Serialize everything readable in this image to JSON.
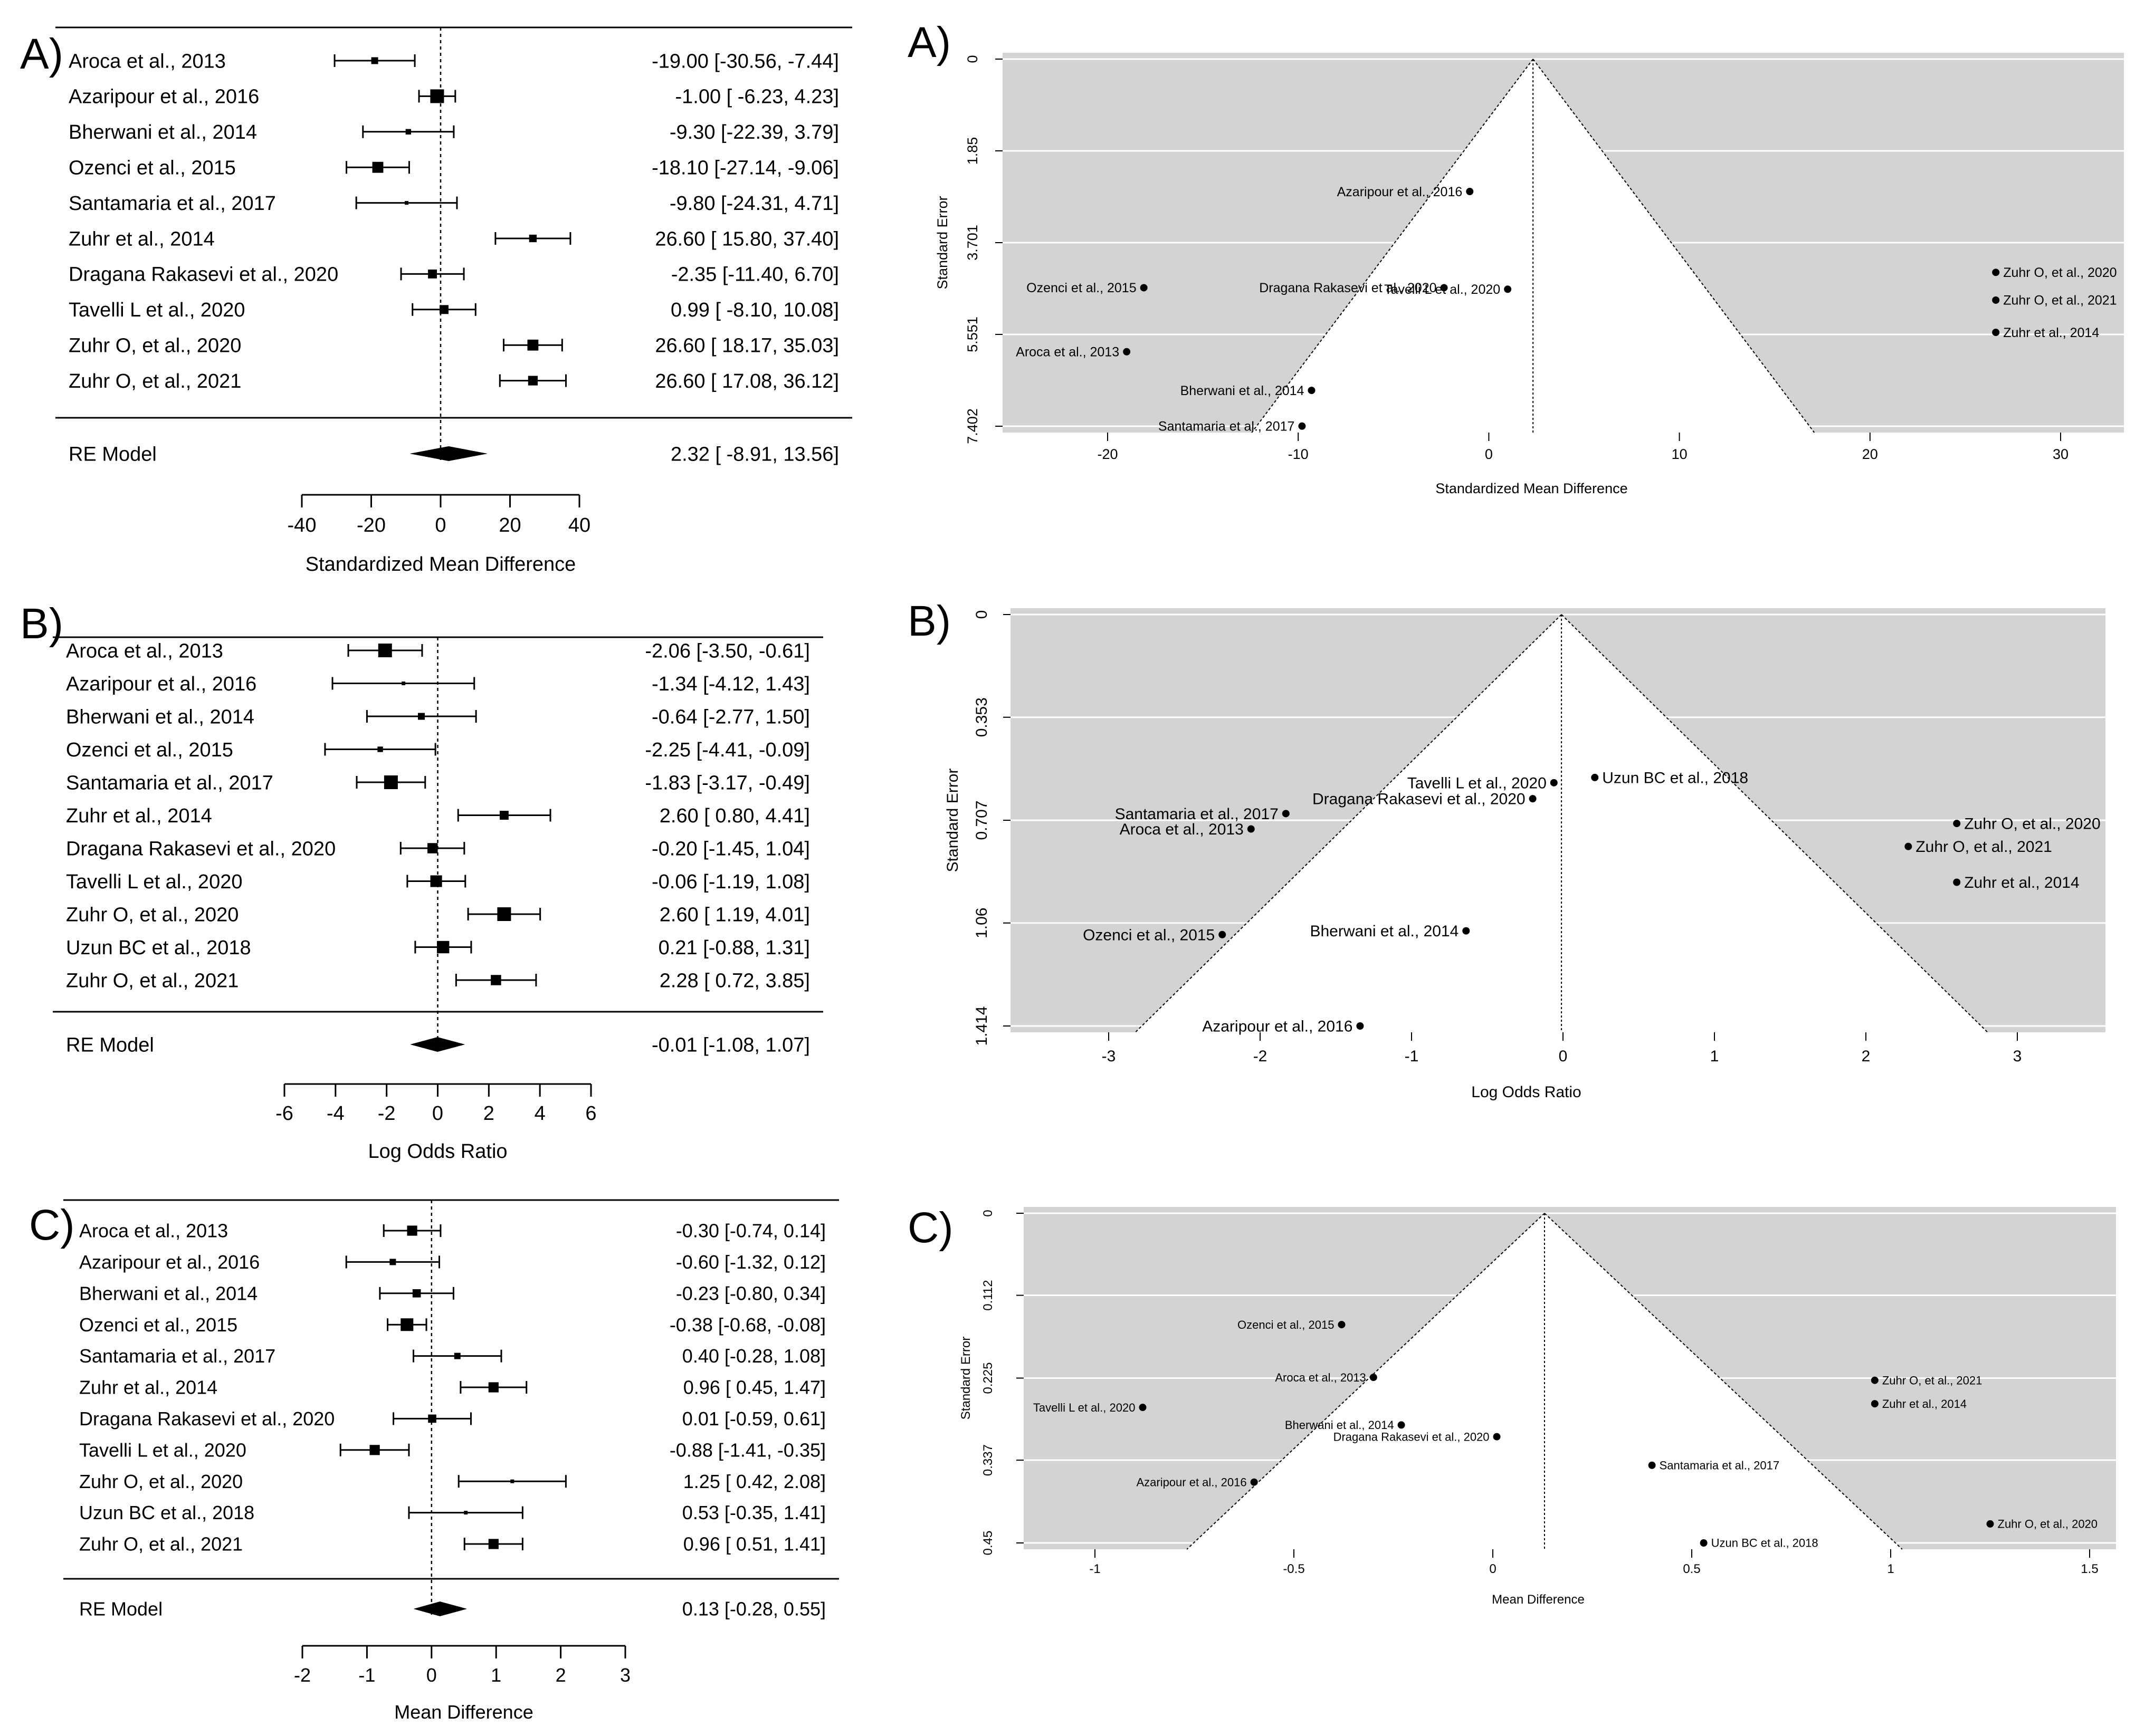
{
  "chart_data": [
    {
      "id": "forest-a",
      "type": "forest",
      "panel_label": "A)",
      "xlabel": "Standardized Mean Difference",
      "xlim": [
        -40,
        40
      ],
      "xticks": [
        -40,
        -20,
        0,
        20,
        40
      ],
      "xtick_labels": [
        "-40",
        "-20",
        "0",
        "20",
        "40"
      ],
      "studies": [
        {
          "label": "Aroca et al., 2013",
          "est": -19.0,
          "lo": -30.56,
          "hi": -7.44,
          "ci_text": "-19.00 [-30.56, -7.44]",
          "weight": 0.5
        },
        {
          "label": "Azaripour et al., 2016",
          "est": -1.0,
          "lo": -6.23,
          "hi": 4.23,
          "ci_text": "-1.00 [ -6.23,  4.23]",
          "weight": 1.0
        },
        {
          "label": "Bherwani et al., 2014",
          "est": -9.3,
          "lo": -22.39,
          "hi": 3.79,
          "ci_text": "-9.30 [-22.39,  3.79]",
          "weight": 0.4
        },
        {
          "label": "Ozenci et al., 2015",
          "est": -18.1,
          "lo": -27.14,
          "hi": -9.06,
          "ci_text": "-18.10 [-27.14, -9.06]",
          "weight": 0.8
        },
        {
          "label": "Santamaria et al., 2017",
          "est": -9.8,
          "lo": -24.31,
          "hi": 4.71,
          "ci_text": "-9.80 [-24.31,  4.71]",
          "weight": 0.2
        },
        {
          "label": "Zuhr et al., 2014",
          "est": 26.6,
          "lo": 15.8,
          "hi": 37.4,
          "ci_text": "26.60 [ 15.80, 37.40]",
          "weight": 0.55
        },
        {
          "label": "Dragana Rakasevi et al., 2020",
          "est": -2.35,
          "lo": -11.4,
          "hi": 6.7,
          "ci_text": "-2.35 [-11.40,  6.70]",
          "weight": 0.65
        },
        {
          "label": "Tavelli L et al., 2020",
          "est": 0.99,
          "lo": -8.1,
          "hi": 10.08,
          "ci_text": "0.99 [ -8.10, 10.08]",
          "weight": 0.65
        },
        {
          "label": "Zuhr O, et al., 2020",
          "est": 26.6,
          "lo": 18.17,
          "hi": 35.03,
          "ci_text": "26.60 [ 18.17, 35.03]",
          "weight": 0.8
        },
        {
          "label": "Zuhr O, et al., 2021",
          "est": 26.6,
          "lo": 17.08,
          "hi": 36.12,
          "ci_text": "26.60 [ 17.08, 36.12]",
          "weight": 0.7
        }
      ],
      "summary": {
        "label": "RE Model",
        "est": 2.32,
        "lo": -8.91,
        "hi": 13.56,
        "ci_text": "2.32 [ -8.91, 13.56]"
      }
    },
    {
      "id": "forest-b",
      "type": "forest",
      "panel_label": "B)",
      "xlabel": "Log Odds Ratio",
      "xlim": [
        -6,
        6
      ],
      "xticks": [
        -6,
        -4,
        -2,
        0,
        2,
        4,
        6
      ],
      "xtick_labels": [
        "-6",
        "-4",
        "-2",
        "0",
        "2",
        "4",
        "6"
      ],
      "studies": [
        {
          "label": "Aroca et al., 2013",
          "est": -2.06,
          "lo": -3.5,
          "hi": -0.61,
          "ci_text": "-2.06 [-3.50, -0.61]",
          "weight": 1.0
        },
        {
          "label": "Azaripour et al., 2016",
          "est": -1.34,
          "lo": -4.12,
          "hi": 1.43,
          "ci_text": "-1.34 [-4.12,  1.43]",
          "weight": 0.2
        },
        {
          "label": "Bherwani et al., 2014",
          "est": -0.64,
          "lo": -2.77,
          "hi": 1.5,
          "ci_text": "-0.64 [-2.77,  1.50]",
          "weight": 0.5
        },
        {
          "label": "Ozenci et al., 2015",
          "est": -2.25,
          "lo": -4.41,
          "hi": -0.09,
          "ci_text": "-2.25 [-4.41, -0.09]",
          "weight": 0.4
        },
        {
          "label": "Santamaria et al., 2017",
          "est": -1.83,
          "lo": -3.17,
          "hi": -0.49,
          "ci_text": "-1.83 [-3.17, -0.49]",
          "weight": 1.0
        },
        {
          "label": "Zuhr et al., 2014",
          "est": 2.6,
          "lo": 0.8,
          "hi": 4.41,
          "ci_text": "2.60 [ 0.80,  4.41]",
          "weight": 0.65
        },
        {
          "label": "Dragana Rakasevi et al., 2020",
          "est": -0.2,
          "lo": -1.45,
          "hi": 1.04,
          "ci_text": "-0.20 [-1.45,  1.04]",
          "weight": 0.75
        },
        {
          "label": "Tavelli L et al., 2020",
          "est": -0.06,
          "lo": -1.19,
          "hi": 1.08,
          "ci_text": "-0.06 [-1.19,  1.08]",
          "weight": 0.85
        },
        {
          "label": "Zuhr O, et al., 2020",
          "est": 2.6,
          "lo": 1.19,
          "hi": 4.01,
          "ci_text": "2.60 [ 1.19,  4.01]",
          "weight": 1.0
        },
        {
          "label": "Uzun BC et al., 2018",
          "est": 0.21,
          "lo": -0.88,
          "hi": 1.31,
          "ci_text": "0.21 [-0.88,  1.31]",
          "weight": 0.9
        },
        {
          "label": "Zuhr O, et al., 2021",
          "est": 2.28,
          "lo": 0.72,
          "hi": 3.85,
          "ci_text": "2.28 [ 0.72,  3.85]",
          "weight": 0.75
        }
      ],
      "summary": {
        "label": "RE Model",
        "est": -0.01,
        "lo": -1.08,
        "hi": 1.07,
        "ci_text": "-0.01 [-1.08,  1.07]"
      }
    },
    {
      "id": "forest-c",
      "type": "forest",
      "panel_label": "C)",
      "xlabel": "Mean Difference",
      "xlim": [
        -2,
        3
      ],
      "xticks": [
        -2,
        -1,
        0,
        1,
        2,
        3
      ],
      "xtick_labels": [
        "-2",
        "-1",
        "0",
        "1",
        "2",
        "3"
      ],
      "studies": [
        {
          "label": "Aroca et al., 2013",
          "est": -0.3,
          "lo": -0.74,
          "hi": 0.14,
          "ci_text": "-0.30 [-0.74,  0.14]",
          "weight": 0.8
        },
        {
          "label": "Azaripour et al., 2016",
          "est": -0.6,
          "lo": -1.32,
          "hi": 0.12,
          "ci_text": "-0.60 [-1.32,  0.12]",
          "weight": 0.5
        },
        {
          "label": "Bherwani et al., 2014",
          "est": -0.23,
          "lo": -0.8,
          "hi": 0.34,
          "ci_text": "-0.23 [-0.80,  0.34]",
          "weight": 0.65
        },
        {
          "label": "Ozenci et al., 2015",
          "est": -0.38,
          "lo": -0.68,
          "hi": -0.08,
          "ci_text": "-0.38 [-0.68, -0.08]",
          "weight": 1.0
        },
        {
          "label": "Santamaria et al., 2017",
          "est": 0.4,
          "lo": -0.28,
          "hi": 1.08,
          "ci_text": "0.40 [-0.28,  1.08]",
          "weight": 0.5
        },
        {
          "label": "Zuhr et al., 2014",
          "est": 0.96,
          "lo": 0.45,
          "hi": 1.47,
          "ci_text": "0.96 [ 0.45,  1.47]",
          "weight": 0.8
        },
        {
          "label": "Dragana Rakasevi et al., 2020",
          "est": 0.01,
          "lo": -0.59,
          "hi": 0.61,
          "ci_text": "0.01 [-0.59,  0.61]",
          "weight": 0.65
        },
        {
          "label": "Tavelli L et al., 2020",
          "est": -0.88,
          "lo": -1.41,
          "hi": -0.35,
          "ci_text": "-0.88 [-1.41, -0.35]",
          "weight": 0.8
        },
        {
          "label": "Zuhr O, et al., 2020",
          "est": 1.25,
          "lo": 0.42,
          "hi": 2.08,
          "ci_text": "1.25 [ 0.42,  2.08]",
          "weight": 0.25
        },
        {
          "label": "Uzun BC et al., 2018",
          "est": 0.53,
          "lo": -0.35,
          "hi": 1.41,
          "ci_text": "0.53 [-0.35,  1.41]",
          "weight": 0.25
        },
        {
          "label": "Zuhr O, et al., 2021",
          "est": 0.96,
          "lo": 0.51,
          "hi": 1.41,
          "ci_text": "0.96 [ 0.51,  1.41]",
          "weight": 0.8
        }
      ],
      "summary": {
        "label": "RE Model",
        "est": 0.13,
        "lo": -0.28,
        "hi": 0.55,
        "ci_text": "0.13 [-0.28,  0.55]"
      }
    },
    {
      "id": "funnel-a",
      "type": "funnel",
      "panel_label": "A)",
      "xlabel": "Standardized Mean Difference",
      "ylabel": "Standard Error",
      "xlim": [
        -26.5,
        33
      ],
      "ylim": [
        0,
        7.402
      ],
      "xticks": [
        -20,
        -10,
        0,
        10,
        20,
        30
      ],
      "xtick_labels": [
        "-20",
        "-10",
        "0",
        "10",
        "20",
        "30"
      ],
      "yticks": [
        0,
        1.85,
        3.701,
        5.551,
        7.402
      ],
      "ytick_labels": [
        "0",
        "1.85",
        "3.701",
        "5.551",
        "7.402"
      ],
      "center": 2.32,
      "points": [
        {
          "label": "Azaripour et al., 2016",
          "x": -1.0,
          "y": 2.67,
          "label_side": "left"
        },
        {
          "label": "Ozenci et al., 2015",
          "x": -18.1,
          "y": 4.61,
          "label_side": "left"
        },
        {
          "label": "Dragana Rakasevi et al., 2020",
          "x": -2.35,
          "y": 4.61,
          "label_side": "left"
        },
        {
          "label": "Tavelli L et al., 2020",
          "x": 0.99,
          "y": 4.64,
          "label_side": "left"
        },
        {
          "label": "Aroca et al., 2013",
          "x": -19.0,
          "y": 5.9,
          "label_side": "left"
        },
        {
          "label": "Bherwani et al., 2014",
          "x": -9.3,
          "y": 6.68,
          "label_side": "left"
        },
        {
          "label": "Santamaria et al., 2017",
          "x": -9.8,
          "y": 7.4,
          "label_side": "left"
        },
        {
          "label": "Zuhr O, et al., 2020",
          "x": 26.6,
          "y": 4.3,
          "label_side": "right"
        },
        {
          "label": "Zuhr O, et al., 2021",
          "x": 26.6,
          "y": 4.86,
          "label_side": "right"
        },
        {
          "label": "Zuhr et al., 2014",
          "x": 26.6,
          "y": 5.51,
          "label_side": "right"
        }
      ]
    },
    {
      "id": "funnel-b",
      "type": "funnel",
      "panel_label": "B)",
      "xlabel": "Log Odds Ratio",
      "ylabel": "Standard Error",
      "xlim": [
        -3.6,
        3.6
      ],
      "ylim": [
        0,
        1.414
      ],
      "xticks": [
        -3,
        -2,
        -1,
        0,
        1,
        2,
        3
      ],
      "xtick_labels": [
        "-3",
        "-2",
        "-1",
        "0",
        "1",
        "2",
        "3"
      ],
      "yticks": [
        0,
        0.353,
        0.707,
        1.06,
        1.414
      ],
      "ytick_labels": [
        "0",
        "0.353",
        "0.707",
        "1.06",
        "1.414"
      ],
      "center": -0.01,
      "points": [
        {
          "label": "Uzun BC et al., 2018",
          "x": 0.21,
          "y": 0.56,
          "label_side": "right"
        },
        {
          "label": "Tavelli L et al., 2020",
          "x": -0.06,
          "y": 0.578,
          "label_side": "left"
        },
        {
          "label": "Dragana Rakasevi et al., 2020",
          "x": -0.2,
          "y": 0.633,
          "label_side": "left"
        },
        {
          "label": "Santamaria et al., 2017",
          "x": -1.83,
          "y": 0.684,
          "label_side": "left"
        },
        {
          "label": "Aroca et al., 2013",
          "x": -2.06,
          "y": 0.737,
          "label_side": "left"
        },
        {
          "label": "Zuhr O, et al., 2020",
          "x": 2.6,
          "y": 0.718,
          "label_side": "right"
        },
        {
          "label": "Zuhr O, et al., 2021",
          "x": 2.28,
          "y": 0.797,
          "label_side": "right"
        },
        {
          "label": "Zuhr et al., 2014",
          "x": 2.6,
          "y": 0.92,
          "label_side": "right"
        },
        {
          "label": "Ozenci et al., 2015",
          "x": -2.25,
          "y": 1.1,
          "label_side": "left"
        },
        {
          "label": "Bherwani et al., 2014",
          "x": -0.64,
          "y": 1.087,
          "label_side": "left"
        },
        {
          "label": "Azaripour et al., 2016",
          "x": -1.34,
          "y": 1.414,
          "label_side": "left"
        }
      ]
    },
    {
      "id": "funnel-c",
      "type": "funnel",
      "panel_label": "C)",
      "xlabel": "Mean Difference",
      "ylabel": "Standard Error",
      "xlim": [
        -1.18,
        1.55
      ],
      "ylim": [
        0,
        0.45
      ],
      "xticks": [
        -1,
        -0.5,
        0,
        0.5,
        1,
        1.5
      ],
      "xtick_labels": [
        "-1",
        "-0.5",
        "0",
        "0.5",
        "1",
        "1.5"
      ],
      "yticks": [
        0,
        0.112,
        0.225,
        0.337,
        0.45
      ],
      "ytick_labels": [
        "0",
        "0.112",
        "0.225",
        "0.337",
        "0.45"
      ],
      "center": 0.13,
      "points": [
        {
          "label": "Ozenci et al., 2015",
          "x": -0.38,
          "y": 0.152,
          "label_side": "left"
        },
        {
          "label": "Aroca et al., 2013",
          "x": -0.3,
          "y": 0.224,
          "label_side": "left"
        },
        {
          "label": "Tavelli L et al., 2020",
          "x": -0.88,
          "y": 0.265,
          "label_side": "left"
        },
        {
          "label": "Bherwani et al., 2014",
          "x": -0.23,
          "y": 0.289,
          "label_side": "left"
        },
        {
          "label": "Dragana Rakasevi et al., 2020",
          "x": 0.01,
          "y": 0.305,
          "label_side": "left"
        },
        {
          "label": "Azaripour et al., 2016",
          "x": -0.6,
          "y": 0.367,
          "label_side": "left"
        },
        {
          "label": "Santamaria et al., 2017",
          "x": 0.4,
          "y": 0.344,
          "label_side": "right"
        },
        {
          "label": "Zuhr O, et al., 2021",
          "x": 0.96,
          "y": 0.228,
          "label_side": "right"
        },
        {
          "label": "Zuhr et al., 2014",
          "x": 0.96,
          "y": 0.26,
          "label_side": "right"
        },
        {
          "label": "Zuhr O, et al., 2020",
          "x": 1.25,
          "y": 0.424,
          "label_side": "right"
        },
        {
          "label": "Uzun BC et al., 2018",
          "x": 0.53,
          "y": 0.45,
          "label_side": "right"
        }
      ]
    }
  ]
}
